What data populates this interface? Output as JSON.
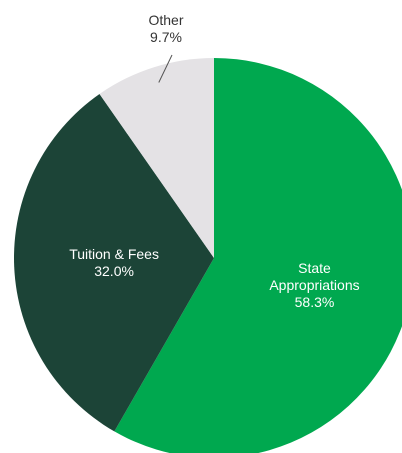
{
  "chart_data": {
    "type": "pie",
    "title": "",
    "slices": [
      {
        "name": "State Appropriations",
        "label_lines": [
          "State",
          "Appropriations"
        ],
        "value": 58.3,
        "value_label": "58.3%",
        "color": "#00a84f",
        "text_color": "#ffffff"
      },
      {
        "name": "Tuition & Fees",
        "label_lines": [
          "Tuition & Fees"
        ],
        "value": 32.0,
        "value_label": "32.0%",
        "color": "#1c4437",
        "text_color": "#ffffff"
      },
      {
        "name": "Other",
        "label_lines": [
          "Other"
        ],
        "value": 9.7,
        "value_label": "9.7%",
        "color": "#e4e2e5",
        "text_color": "#333333"
      }
    ],
    "start": "12 o'clock",
    "direction": "clockwise",
    "legend": "none"
  }
}
